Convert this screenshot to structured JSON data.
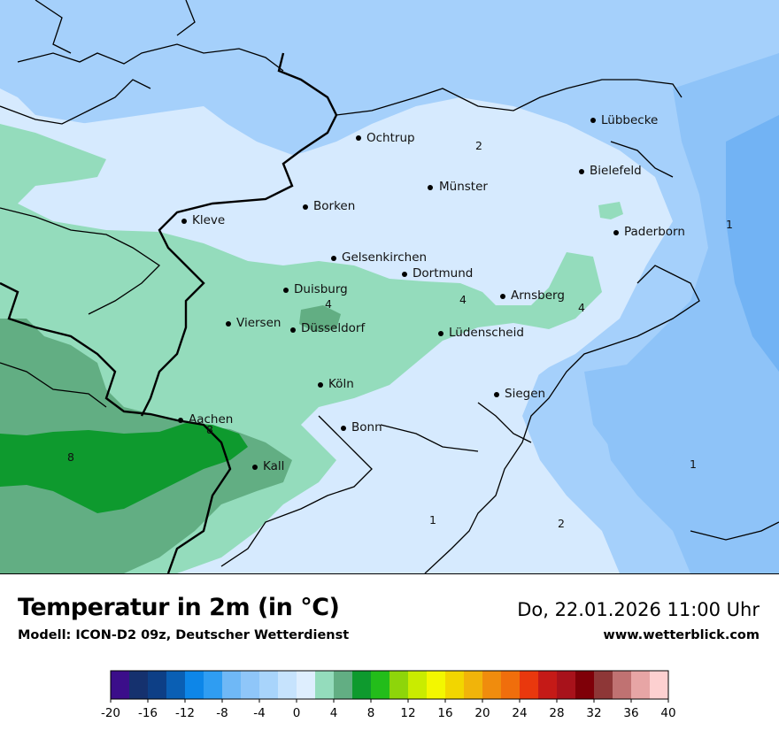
{
  "map": {
    "cities": [
      {
        "name": "Lübbecke"
      },
      {
        "name": "Ochtrup"
      },
      {
        "name": "Bielefeld"
      },
      {
        "name": "Münster"
      },
      {
        "name": "Borken"
      },
      {
        "name": "Kleve"
      },
      {
        "name": "Paderborn"
      },
      {
        "name": "Gelsenkirchen"
      },
      {
        "name": "Dortmund"
      },
      {
        "name": "Duisburg"
      },
      {
        "name": "Arnsberg"
      },
      {
        "name": "Viersen"
      },
      {
        "name": "Düsseldorf"
      },
      {
        "name": "Lüdenscheid"
      },
      {
        "name": "Köln"
      },
      {
        "name": "Siegen"
      },
      {
        "name": "Aachen"
      },
      {
        "name": "Bonn"
      },
      {
        "name": "Kall"
      }
    ],
    "isolines": [
      "2",
      "1",
      "4",
      "4",
      "4",
      "8",
      "8",
      "1",
      "1",
      "2"
    ]
  },
  "footer": {
    "title": "Temperatur in 2m (in °C)",
    "model": "Modell: ICON-D2 09z, Deutscher Wetterdienst",
    "datetime": "Do, 22.01.2026 11:00 Uhr",
    "website": "www.wetterblick.com"
  },
  "legend": {
    "ticks": [
      "-20",
      "-16",
      "-12",
      "-8",
      "-4",
      "0",
      "4",
      "8",
      "12",
      "16",
      "20",
      "24",
      "28",
      "32",
      "36",
      "40"
    ],
    "colors": [
      "#3b0e8a",
      "#15316e",
      "#0d3f86",
      "#0a5fb4",
      "#0d86e8",
      "#2f9df2",
      "#6fb8f6",
      "#8fc6f9",
      "#a8d4fb",
      "#c6e3fd",
      "#deeefe",
      "#94dcbc",
      "#62ae83",
      "#0e9a2e",
      "#23bd1a",
      "#8ed50a",
      "#c9ec00",
      "#f3f700",
      "#f2d600",
      "#f1b40a",
      "#f08c0d",
      "#f06e0c",
      "#e9380d",
      "#c51a17",
      "#a8121b",
      "#7f0008",
      "#8e3737",
      "#c07272",
      "#e7a5a5",
      "#fdd0d0"
    ]
  }
}
